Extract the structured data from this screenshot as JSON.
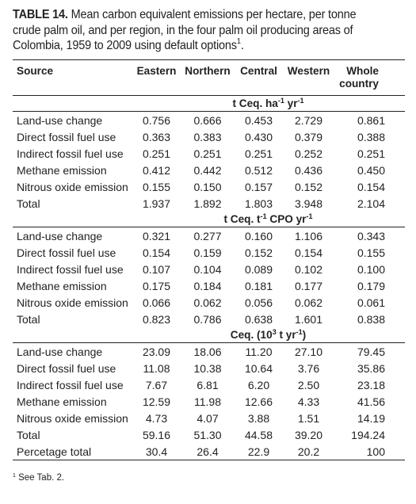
{
  "caption": {
    "label": "TABLE 14.",
    "text": " Mean carbon equivalent emissions per hectare, per tonne crude palm oil, and per region, in the four palm oil producing areas of Colombia, 1959 to 2009 using default options",
    "footnote_mark": "1",
    "end": "."
  },
  "columns": {
    "source": "Source",
    "eastern": "Eastern",
    "northern": "Northern",
    "central": "Central",
    "western": "Western",
    "whole_line1": "Whole",
    "whole_line2": "country"
  },
  "sections": [
    {
      "unit_pre": "t Ceq. ha",
      "unit_sup1": "-1",
      "unit_mid": " yr",
      "unit_sup2": "-1",
      "unit_post": "",
      "rows": [
        {
          "label": "Land-use change",
          "eastern": "0.756",
          "northern": "0.666",
          "central": "0.453",
          "western": "2.729",
          "whole": "0.861"
        },
        {
          "label": "Direct fossil fuel use",
          "eastern": "0.363",
          "northern": "0.383",
          "central": "0.430",
          "western": "0.379",
          "whole": "0.388"
        },
        {
          "label": "Indirect fossil fuel use",
          "eastern": "0.251",
          "northern": "0.251",
          "central": "0.251",
          "western": "0.252",
          "whole": "0.251"
        },
        {
          "label": "Methane emission",
          "eastern": "0.412",
          "northern": "0.442",
          "central": "0.512",
          "western": "0.436",
          "whole": "0.450"
        },
        {
          "label": "Nitrous oxide emission",
          "eastern": "0.155",
          "northern": "0.150",
          "central": "0.157",
          "western": "0.152",
          "whole": "0.154"
        },
        {
          "label": "Total",
          "eastern": "1.937",
          "northern": "1.892",
          "central": "1.803",
          "western": "3.948",
          "whole": "2.104"
        }
      ]
    },
    {
      "unit_pre": "t Ceq. t",
      "unit_sup1": "-1",
      "unit_mid": " CPO yr",
      "unit_sup2": "-1",
      "unit_post": "",
      "rows": [
        {
          "label": "Land-use change",
          "eastern": "0.321",
          "northern": "0.277",
          "central": "0.160",
          "western": "1.106",
          "whole": "0.343"
        },
        {
          "label": "Direct fossil fuel use",
          "eastern": "0.154",
          "northern": "0.159",
          "central": "0.152",
          "western": "0.154",
          "whole": "0.155"
        },
        {
          "label": "Indirect fossil fuel use",
          "eastern": "0.107",
          "northern": "0.104",
          "central": "0.089",
          "western": "0.102",
          "whole": "0.100"
        },
        {
          "label": "Methane emission",
          "eastern": "0.175",
          "northern": "0.184",
          "central": "0.181",
          "western": "0.177",
          "whole": "0.179"
        },
        {
          "label": "Nitrous oxide emission",
          "eastern": "0.066",
          "northern": "0.062",
          "central": "0.056",
          "western": "0.062",
          "whole": "0.061"
        },
        {
          "label": "Total",
          "eastern": "0.823",
          "northern": "0.786",
          "central": "0.638",
          "western": "1.601",
          "whole": "0.838"
        }
      ]
    },
    {
      "unit_pre": "Ceq. (10",
      "unit_sup1": "3",
      "unit_mid": " t yr",
      "unit_sup2": "-1",
      "unit_post": ")",
      "rows": [
        {
          "label": "Land-use change",
          "eastern": "23.09",
          "northern": "18.06",
          "central": "11.20",
          "western": "27.10",
          "whole": "79.45"
        },
        {
          "label": "Direct fossil fuel use",
          "eastern": "11.08",
          "northern": "10.38",
          "central": "10.64",
          "western": "3.76",
          "whole": "35.86"
        },
        {
          "label": "Indirect fossil fuel use",
          "eastern": "7.67",
          "northern": "6.81",
          "central": "6.20",
          "western": "2.50",
          "whole": "23.18"
        },
        {
          "label": "Methane emission",
          "eastern": "12.59",
          "northern": "11.98",
          "central": "12.66",
          "western": "4.33",
          "whole": "41.56"
        },
        {
          "label": "Nitrous oxide emission",
          "eastern": "4.73",
          "northern": "4.07",
          "central": "3.88",
          "western": "1.51",
          "whole": "14.19"
        },
        {
          "label": "Total",
          "eastern": "59.16",
          "northern": "51.30",
          "central": "44.58",
          "western": "39.20",
          "whole": "194.24"
        },
        {
          "label": "Percetage total",
          "eastern": "30.4",
          "northern": "26.4",
          "central": "22.9",
          "western": "20.2",
          "whole": "100"
        }
      ]
    }
  ],
  "footnote": {
    "mark": "1",
    "text": " See Tab. 2."
  }
}
